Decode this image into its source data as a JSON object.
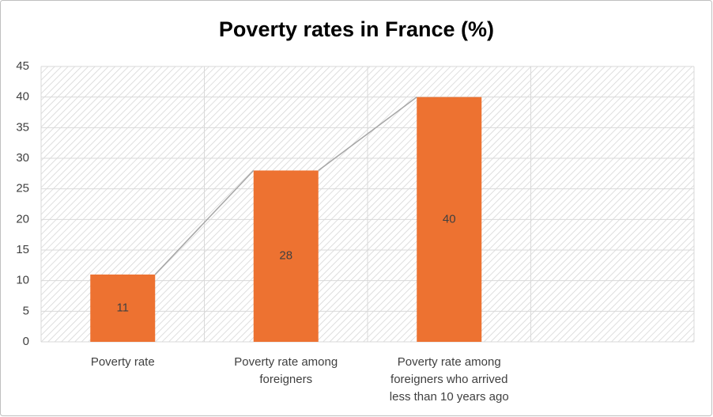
{
  "chart_data": {
    "type": "bar",
    "title": "Poverty rates in France (%)",
    "categories": [
      "Poverty rate",
      "Poverty rate among foreigners",
      "Poverty rate among foreigners who arrived less than 10 years ago",
      null
    ],
    "values": [
      11,
      28,
      40,
      null
    ],
    "color": "#ed7231",
    "line_color": "#a6a6a6",
    "ylim": [
      0,
      45
    ],
    "yticks": [
      0,
      5,
      10,
      15,
      20,
      25,
      30,
      35,
      40,
      45
    ],
    "grid": true
  }
}
